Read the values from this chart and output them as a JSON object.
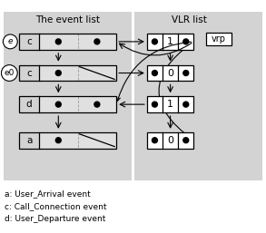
{
  "bg_color": "#d3d3d3",
  "white": "#ffffff",
  "black": "#000000",
  "title_event": "The event list",
  "title_vlr": "VLR list",
  "legend_lines": [
    "a: User_Arrival event",
    "c: Call_Connection event",
    "d: User_Departure event"
  ],
  "event_rows": [
    {
      "label": "c",
      "circle": "e",
      "has_dot2": true,
      "slash": false
    },
    {
      "label": "c",
      "circle": "e0",
      "has_dot2": false,
      "slash": true
    },
    {
      "label": "d",
      "circle": null,
      "has_dot2": true,
      "slash": false
    },
    {
      "label": "a",
      "circle": null,
      "has_dot2": false,
      "slash": true
    }
  ],
  "vlr_rows": [
    {
      "val": "1"
    },
    {
      "val": "0"
    },
    {
      "val": "1"
    },
    {
      "val": "0"
    }
  ],
  "figw": 2.93,
  "figh": 2.57,
  "dpi": 100
}
